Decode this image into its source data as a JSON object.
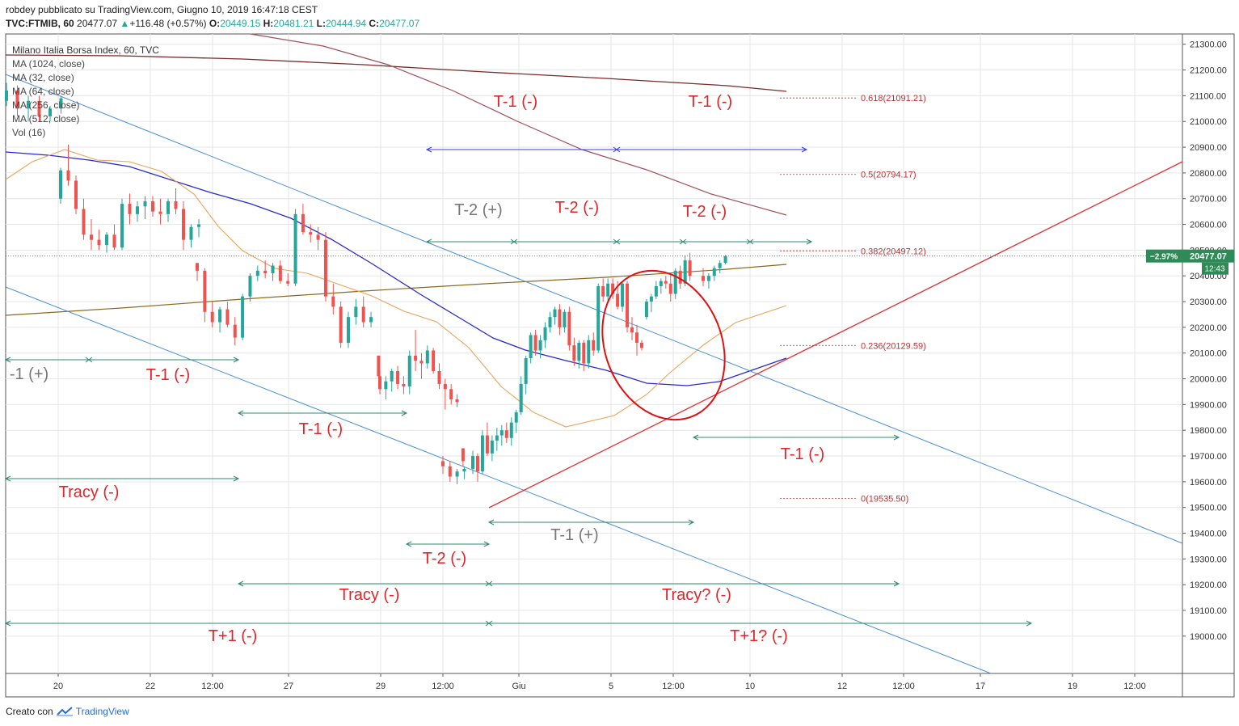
{
  "header": {
    "line1": "robdey pubblicato su TradingView.com, Giugno 10, 2019 16:47:18 CEST",
    "symbol": "TVC:FTMIB, 60",
    "last": "20477.07",
    "change_arrow": "▲",
    "change": "+116.48 (+0.57%)",
    "o_label": "O:",
    "o": "20449.15",
    "h_label": "H:",
    "h": "20481.21",
    "l_label": "L:",
    "l": "20444.94",
    "c_label": "C:",
    "c": "20477.07"
  },
  "legend": [
    "Milano Italia Borsa Index, 60, TVC",
    "MA (1024, close)",
    "MA (32, close)",
    "MA (64, close)",
    "MA (256, close)",
    "MA (512, close)",
    "Vol (16)"
  ],
  "footer": {
    "created": "Creato con",
    "brand": "TradingView"
  },
  "colors": {
    "up": "#26a69a",
    "down": "#ef5350",
    "annotation": "#e0252a",
    "annotation_gray": "#777777",
    "ma32": "#e8a45a",
    "ma64": "#2a2ad0",
    "ma256": "#a05060",
    "ma1024": "#7a2a2a",
    "ma512": "#8a6a20",
    "trend_blue": "#4a8fd8",
    "trend_red": "#e03030",
    "range_green": "#2e8b6a",
    "range_blue": "#3a3ae0",
    "fib": "#c03030",
    "price_tag": "#2e8b57"
  },
  "chart_data": {
    "type": "candlestick",
    "y_axis": {
      "min": 18900,
      "max": 21300,
      "step": 100,
      "side": "right",
      "ticks": [
        "21300.00",
        "21200.00",
        "21100.00",
        "21000.00",
        "20900.00",
        "20800.00",
        "20700.00",
        "20600.00",
        "20500.00",
        "20400.00",
        "20300.00",
        "20200.00",
        "20100.00",
        "20000.00",
        "19900.00",
        "19800.00",
        "19700.00",
        "19600.00",
        "19500.00",
        "19400.00",
        "19300.00",
        "19200.00",
        "19100.00",
        "19000.00"
      ]
    },
    "x_axis": {
      "ticks": [
        "20",
        "22",
        "12:00",
        "27",
        "29",
        "12:00",
        "Giu",
        "5",
        "12:00",
        "10",
        "12",
        "12:00",
        "17",
        "19",
        "12:00"
      ]
    },
    "price_tag": {
      "value": "20477.07",
      "change": "−2.97%",
      "countdown": "12:43"
    },
    "fibonacci": [
      {
        "label": "0.618(21091.21)",
        "value": 21091.21
      },
      {
        "label": "0.5(20794.17)",
        "value": 20794.17
      },
      {
        "label": "0.382(20497.12)",
        "value": 20497.12
      },
      {
        "label": "0.236(20129.59)",
        "value": 20129.59
      },
      {
        "label": "0(19535.50)",
        "value": 19535.5
      }
    ],
    "candles": [
      [
        21080,
        21150,
        21060,
        21120
      ],
      [
        21120,
        21140,
        21020,
        21050
      ],
      [
        21050,
        21100,
        21000,
        21080
      ],
      [
        21080,
        21100,
        21000,
        21020
      ],
      [
        21020,
        21060,
        21000,
        21050
      ],
      [
        21050,
        21100,
        21030,
        21090
      ],
      [
        20700,
        20820,
        20680,
        20810
      ],
      [
        20810,
        20910,
        20750,
        20770
      ],
      [
        20770,
        20790,
        20640,
        20660
      ],
      [
        20660,
        20700,
        20540,
        20560
      ],
      [
        20560,
        20620,
        20500,
        20540
      ],
      [
        20540,
        20580,
        20500,
        20520
      ],
      [
        20520,
        20570,
        20490,
        20560
      ],
      [
        20560,
        20600,
        20500,
        20510
      ],
      [
        20510,
        20700,
        20500,
        20680
      ],
      [
        20680,
        20720,
        20600,
        20640
      ],
      [
        20640,
        20690,
        20610,
        20670
      ],
      [
        20670,
        20710,
        20620,
        20690
      ],
      [
        20690,
        20710,
        20630,
        20650
      ],
      [
        20650,
        20700,
        20600,
        20640
      ],
      [
        20640,
        20700,
        20610,
        20690
      ],
      [
        20690,
        20740,
        20640,
        20660
      ],
      [
        20660,
        20690,
        20500,
        20540
      ],
      [
        20540,
        20600,
        20510,
        20590
      ],
      [
        20590,
        20620,
        20550,
        20600
      ],
      [
        20450,
        20450,
        20380,
        20420
      ],
      [
        20420,
        20430,
        20220,
        20260
      ],
      [
        20260,
        20300,
        20200,
        20220
      ],
      [
        20220,
        20280,
        20180,
        20270
      ],
      [
        20270,
        20300,
        20200,
        20210
      ],
      [
        20210,
        20240,
        20130,
        20160
      ],
      [
        20160,
        20330,
        20150,
        20320
      ],
      [
        20320,
        20410,
        20300,
        20400
      ],
      [
        20400,
        20440,
        20380,
        20420
      ],
      [
        20420,
        20460,
        20390,
        20410
      ],
      [
        20410,
        20450,
        20380,
        20440
      ],
      [
        20440,
        20460,
        20370,
        20380
      ],
      [
        20380,
        20410,
        20360,
        20370
      ],
      [
        20370,
        20660,
        20360,
        20640
      ],
      [
        20640,
        20680,
        20560,
        20570
      ],
      [
        20570,
        20600,
        20530,
        20560
      ],
      [
        20560,
        20590,
        20500,
        20540
      ],
      [
        20540,
        20570,
        20300,
        20320
      ],
      [
        20320,
        20370,
        20250,
        20280
      ],
      [
        20280,
        20300,
        20120,
        20140
      ],
      [
        20140,
        20260,
        20120,
        20240
      ],
      [
        20240,
        20310,
        20210,
        20280
      ],
      [
        20280,
        20320,
        20200,
        20220
      ],
      [
        20220,
        20260,
        20200,
        20240
      ],
      [
        20090,
        20090,
        19990,
        20010
      ],
      [
        20010,
        20030,
        19940,
        19960
      ],
      [
        19960,
        20010,
        19920,
        19990
      ],
      [
        19990,
        20040,
        19950,
        20030
      ],
      [
        20030,
        20050,
        19960,
        19980
      ],
      [
        19980,
        20010,
        19940,
        19970
      ],
      [
        19970,
        20110,
        19940,
        20090
      ],
      [
        20090,
        20190,
        20030,
        20070
      ],
      [
        20070,
        20100,
        20000,
        20060
      ],
      [
        20060,
        20130,
        20040,
        20110
      ],
      [
        20110,
        20120,
        20020,
        20030
      ],
      [
        20030,
        20060,
        19960,
        19980
      ],
      [
        19980,
        20000,
        19880,
        19960
      ],
      [
        19960,
        19980,
        19900,
        19920
      ],
      [
        19920,
        19940,
        19890,
        19910
      ],
      [
        19730,
        19730,
        19660,
        19680
      ],
      [
        19680,
        19700,
        19630,
        19660
      ],
      [
        19660,
        19680,
        19600,
        19620
      ],
      [
        19620,
        19650,
        19590,
        19640
      ],
      [
        19640,
        19660,
        19610,
        19650
      ],
      [
        19650,
        19720,
        19630,
        19700
      ],
      [
        19700,
        19710,
        19600,
        19640
      ],
      [
        19640,
        19800,
        19630,
        19780
      ],
      [
        19780,
        19830,
        19700,
        19710
      ],
      [
        19710,
        19780,
        19680,
        19760
      ],
      [
        19760,
        19810,
        19720,
        19780
      ],
      [
        19780,
        19820,
        19740,
        19800
      ],
      [
        19800,
        19830,
        19750,
        19770
      ],
      [
        19770,
        19850,
        19740,
        19830
      ],
      [
        19830,
        19880,
        19790,
        19870
      ],
      [
        19870,
        20010,
        19860,
        19980
      ],
      [
        19980,
        20090,
        19940,
        20080
      ],
      [
        20080,
        20180,
        20060,
        20170
      ],
      [
        20170,
        20190,
        20090,
        20110
      ],
      [
        20110,
        20170,
        20080,
        20150
      ],
      [
        20150,
        20220,
        20120,
        20200
      ],
      [
        20200,
        20260,
        20180,
        20240
      ],
      [
        20240,
        20280,
        20210,
        20270
      ],
      [
        20270,
        20290,
        20170,
        20200
      ],
      [
        20200,
        20270,
        20180,
        20260
      ],
      [
        20260,
        20280,
        20110,
        20130
      ],
      [
        20130,
        20160,
        20050,
        20070
      ],
      [
        20070,
        20150,
        20040,
        20140
      ],
      [
        20140,
        20150,
        20030,
        20060
      ],
      [
        20060,
        20170,
        20040,
        20150
      ],
      [
        20150,
        20180,
        20090,
        20110
      ],
      [
        20110,
        20370,
        20100,
        20360
      ],
      [
        20360,
        20390,
        20300,
        20320
      ],
      [
        20320,
        20390,
        20300,
        20370
      ],
      [
        20370,
        20390,
        20310,
        20330
      ],
      [
        20330,
        20380,
        20270,
        20280
      ],
      [
        20280,
        20380,
        20260,
        20370
      ],
      [
        20370,
        20380,
        20180,
        20200
      ],
      [
        20200,
        20240,
        20150,
        20180
      ],
      [
        20180,
        20210,
        20090,
        20140
      ],
      [
        20140,
        20150,
        20110,
        20120
      ],
      [
        20240,
        20310,
        20230,
        20300
      ],
      [
        20300,
        20330,
        20260,
        20320
      ],
      [
        20320,
        20380,
        20310,
        20360
      ],
      [
        20360,
        20390,
        20330,
        20380
      ],
      [
        20380,
        20400,
        20350,
        20370
      ],
      [
        20370,
        20410,
        20300,
        20330
      ],
      [
        20330,
        20430,
        20310,
        20420
      ],
      [
        20420,
        20440,
        20350,
        20370
      ],
      [
        20370,
        20480,
        20360,
        20460
      ],
      [
        20460,
        20490,
        20380,
        20400
      ],
      [
        20400,
        20430,
        20360,
        20380
      ],
      [
        20380,
        20410,
        20350,
        20400
      ],
      [
        20400,
        20440,
        20380,
        20430
      ],
      [
        20430,
        20460,
        20410,
        20450
      ],
      [
        20450,
        20481,
        20445,
        20477
      ]
    ]
  },
  "annotations": [
    {
      "text": "T-1 (-)",
      "gray": false
    },
    {
      "text": "T-1 (-)",
      "gray": false
    },
    {
      "text": "T-2 (+)",
      "gray": true
    },
    {
      "text": "T-2 (-)",
      "gray": false
    },
    {
      "text": "T-2 (-)",
      "gray": false
    },
    {
      "text": "-1 (+)",
      "gray": true
    },
    {
      "text": "T-1 (-)",
      "gray": false
    },
    {
      "text": "T-1 (-)",
      "gray": false
    },
    {
      "text": "T-1 (-)",
      "gray": false
    },
    {
      "text": "Tracy (-)",
      "gray": false
    },
    {
      "text": "T-1 (+)",
      "gray": true
    },
    {
      "text": "T-2 (-)",
      "gray": false
    },
    {
      "text": "Tracy (-)",
      "gray": false
    },
    {
      "text": "Tracy? (-)",
      "gray": false
    },
    {
      "text": "T+1 (-)",
      "gray": false
    },
    {
      "text": "T+1? (-)",
      "gray": false
    }
  ]
}
